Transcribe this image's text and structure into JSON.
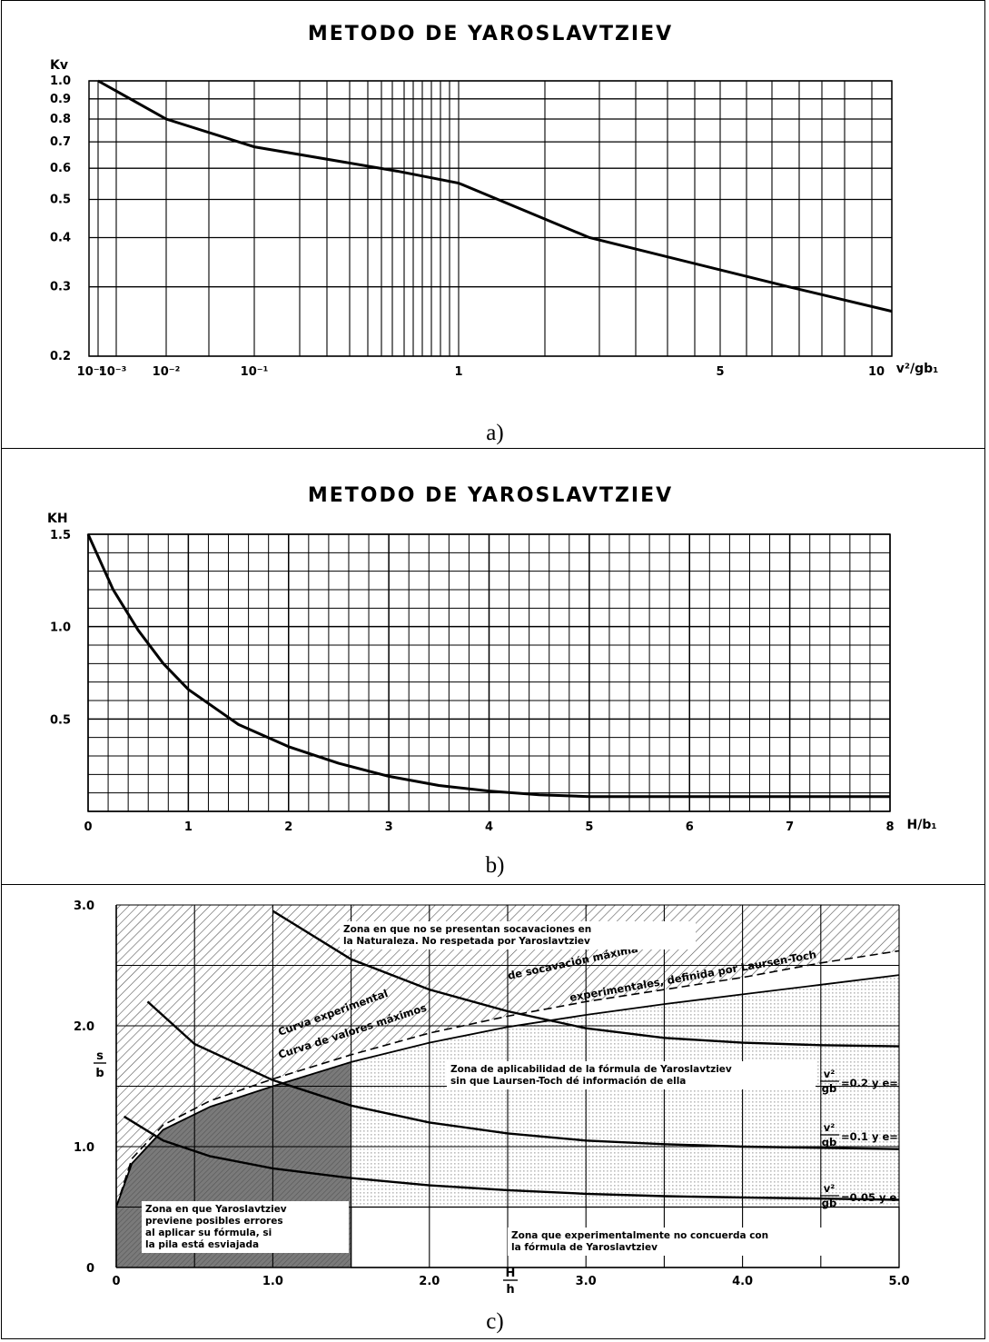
{
  "captions": {
    "a": "a)",
    "b": "b)",
    "c": "c)"
  },
  "colors": {
    "ink": "#000000",
    "paper": "#ffffff",
    "light_hatch": "#bdbdbd",
    "dark_zone": "#7a7a7a"
  },
  "chart_data": [
    {
      "id": "a",
      "type": "line",
      "title": "METODO DE YAROSLAVTZIEV",
      "ylabel": "Kv",
      "xlabel": "v²/gb₁",
      "x_scale": "custom-log",
      "y_scale": "log",
      "ylim": [
        0.2,
        1.0
      ],
      "x_ticks": [
        "10⁻⁴",
        "10⁻³",
        "10⁻²",
        "10⁻¹",
        "1",
        "5",
        "10"
      ],
      "y_ticks": [
        "1.0",
        "0.9",
        "0.8",
        "0.7",
        "0.6",
        "0.5",
        "0.4",
        "0.3",
        "0.2"
      ],
      "grid": true,
      "series": [
        {
          "x": [
            0.0001,
            0.01,
            0.1,
            0.5,
            1,
            3,
            7,
            10
          ],
          "y": [
            1.0,
            0.8,
            0.68,
            0.59,
            0.55,
            0.4,
            0.3,
            0.26
          ]
        }
      ]
    },
    {
      "id": "b",
      "type": "line",
      "title": "METODO DE YAROSLAVTZIEV",
      "ylabel": "KH",
      "xlabel": "H/b₁",
      "xlim": [
        0,
        8
      ],
      "ylim": [
        0,
        1.5
      ],
      "x_ticks": [
        "0",
        "1",
        "2",
        "3",
        "4",
        "5",
        "6",
        "7",
        "8"
      ],
      "y_ticks": [
        "0.5",
        "1.0",
        "1.5"
      ],
      "grid": true,
      "series": [
        {
          "x": [
            0,
            0.25,
            0.5,
            0.75,
            1,
            1.5,
            2,
            2.5,
            3,
            3.5,
            4,
            4.5,
            5,
            6,
            7,
            8
          ],
          "y": [
            1.5,
            1.2,
            0.98,
            0.8,
            0.66,
            0.47,
            0.35,
            0.26,
            0.19,
            0.14,
            0.11,
            0.09,
            0.08,
            0.08,
            0.08,
            0.08
          ]
        }
      ]
    },
    {
      "id": "c",
      "type": "line",
      "xlabel": "H/h",
      "ylabel": "s/b",
      "xlim": [
        0,
        5
      ],
      "ylim": [
        0,
        3
      ],
      "x_ticks": [
        "0",
        "1.0",
        "2.0",
        "3.0",
        "4.0",
        "5.0"
      ],
      "y_ticks": [
        "0",
        "1.0",
        "2.0",
        "3.0"
      ],
      "grid": true,
      "series": [
        {
          "name": "v²/gb =0.2 y e=",
          "x": [
            1.0,
            1.5,
            2.0,
            2.5,
            3.0,
            3.5,
            4.0,
            4.5,
            5.0
          ],
          "y": [
            2.95,
            2.55,
            2.3,
            2.12,
            1.98,
            1.9,
            1.86,
            1.84,
            1.83
          ]
        },
        {
          "name": "v²/gb =0.1 y e=",
          "x": [
            0.2,
            0.5,
            1.0,
            1.5,
            2.0,
            2.5,
            3.0,
            3.5,
            4.0,
            4.5,
            5.0
          ],
          "y": [
            2.2,
            1.85,
            1.55,
            1.34,
            1.2,
            1.11,
            1.05,
            1.02,
            1.0,
            0.99,
            0.98
          ]
        },
        {
          "name": "v²/gb =0.05 y e",
          "x": [
            0.05,
            0.3,
            0.6,
            1.0,
            1.5,
            2.0,
            2.5,
            3.0,
            3.5,
            4.0,
            4.5,
            5.0
          ],
          "y": [
            1.25,
            1.05,
            0.92,
            0.82,
            0.74,
            0.68,
            0.64,
            0.61,
            0.59,
            0.58,
            0.57,
            0.56
          ]
        },
        {
          "name": "Curva experimental de socavación máxima",
          "x": [
            0.0,
            0.1,
            0.3,
            0.6,
            1.0,
            1.5,
            2.0,
            2.5,
            3.0,
            3.5,
            4.0,
            4.5,
            5.0
          ],
          "y": [
            0.5,
            0.9,
            1.18,
            1.38,
            1.56,
            1.76,
            1.94,
            2.08,
            2.2,
            2.3,
            2.4,
            2.52,
            2.62
          ]
        },
        {
          "name": "Curva de valores máximos experimentales, definida por Laursen-Toch",
          "x": [
            0.0,
            0.1,
            0.3,
            0.6,
            1.0,
            1.5,
            2.0,
            2.5,
            3.0,
            3.5,
            4.0,
            4.5,
            5.0
          ],
          "y": [
            0.5,
            0.86,
            1.14,
            1.33,
            1.5,
            1.7,
            1.86,
            1.99,
            2.09,
            2.18,
            2.26,
            2.34,
            2.42
          ]
        }
      ],
      "labels": {
        "curve_0_2": "=0.2 y e=",
        "curve_0_1": "=0.1 y e=",
        "curve_0_05": "=0.05 y e",
        "v2": "v²",
        "gb": "gb",
        "experimental_1": "Curva experimental",
        "experimental_2": "de socavación máxima",
        "laursen_1": "Curva de valores máximos",
        "laursen_2": "experimentales, definida por Laursen-Toch"
      },
      "zones": {
        "top_line1": "Zona en que no se presentan socavaciones en",
        "top_line2": "la Naturaleza. No respetada por Yaroslavtziev",
        "mid_line1": "Zona de aplicabilidad de la fórmula de Yaroslavtziev",
        "mid_line2": "sin que Laursen-Toch dé información de ella",
        "left_line1": "Zona en que Yaroslavtziev",
        "left_line2": "previene posibles errores",
        "left_line3": "al aplicar su fórmula, si",
        "left_line4": "la pila está esviajada",
        "bottom_line1": "Zona que experimentalmente no concuerda con",
        "bottom_line2": "la fórmula de Yaroslavtziev"
      }
    }
  ]
}
